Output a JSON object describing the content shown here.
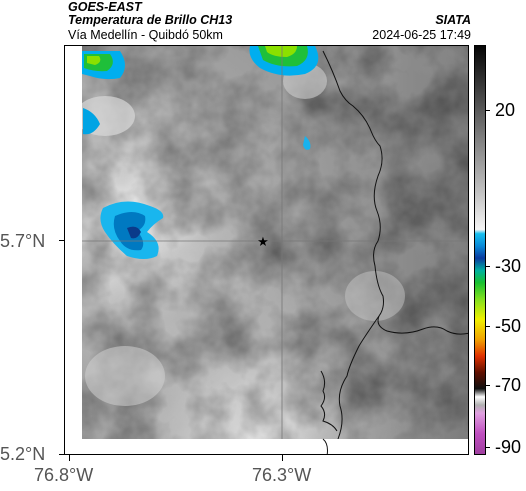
{
  "header": {
    "satellite": "GOES-EAST",
    "product": "Temperatura de Brillo CH13",
    "organization": "SIATA",
    "route": "Vía Medellín - Quibdó 50km",
    "datetime": "2024-06-25 17:49"
  },
  "axes": {
    "lat_ticks": [
      "5.7°N",
      "5.2°N"
    ],
    "lon_ticks": [
      "76.8°W",
      "76.3°W"
    ]
  },
  "colorbar": {
    "labels": [
      "20",
      "-30",
      "-50",
      "-70",
      "-90"
    ]
  },
  "map": {
    "marker_icon": "star-icon",
    "grid_lines": true
  }
}
